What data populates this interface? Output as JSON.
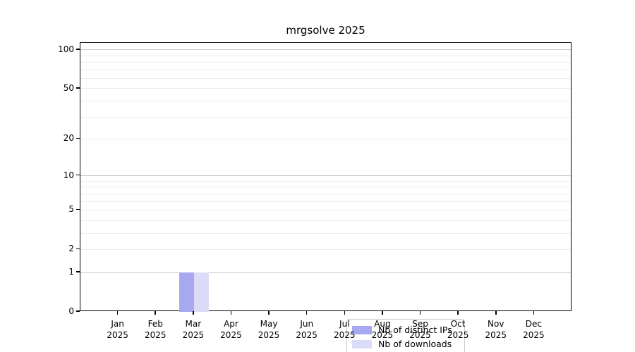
{
  "chart_data": {
    "type": "bar",
    "title": "mrgsolve 2025",
    "categories": [
      "Jan",
      "Feb",
      "Mar",
      "Apr",
      "May",
      "Jun",
      "Jul",
      "Aug",
      "Sep",
      "Oct",
      "Nov",
      "Dec"
    ],
    "category_year": "2025",
    "series": [
      {
        "name": "Nb of distinct IPs",
        "color": "#a8a8f0",
        "values": [
          0,
          0,
          1,
          0,
          0,
          0,
          0,
          0,
          0,
          0,
          0,
          0
        ]
      },
      {
        "name": "Nb of downloads",
        "color": "#dcdcf8",
        "values": [
          0,
          0,
          1,
          0,
          0,
          0,
          0,
          0,
          0,
          0,
          0,
          0
        ]
      }
    ],
    "y_axis": {
      "scale": "log1p",
      "ticks": [
        0,
        1,
        2,
        5,
        10,
        20,
        50,
        100
      ],
      "range": [
        0,
        113
      ],
      "major_gridlines": [
        1,
        10,
        100
      ],
      "minor_gridlines": [
        2,
        3,
        4,
        5,
        6,
        7,
        8,
        9,
        20,
        30,
        40,
        50,
        60,
        70,
        80,
        90
      ]
    },
    "x_axis": {
      "tick_count": 12
    },
    "legend": {
      "position": "lower center, inside plot"
    },
    "colors": {
      "major_grid": "#c8c8c8",
      "minor_grid": "#ededed",
      "axis": "#000000",
      "text": "#000000"
    }
  }
}
